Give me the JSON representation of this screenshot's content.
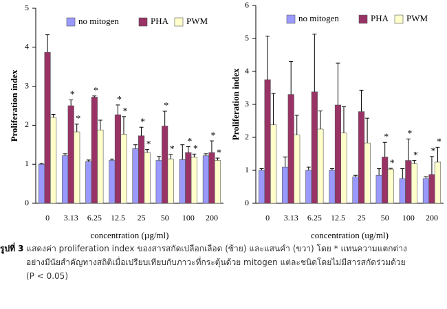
{
  "chart_data": [
    {
      "type": "bar",
      "x_label": "concentration (µg/ml)",
      "y_label": "Proliferation index",
      "categories": [
        "0",
        "3.13",
        "6.25",
        "12.5",
        "25",
        "50",
        "100",
        "200"
      ],
      "ylim": [
        0,
        5
      ],
      "yticks": [
        0,
        1,
        2,
        3,
        4,
        5
      ],
      "series": [
        {
          "name": "no mitogen",
          "color": "#9999ff",
          "values": [
            1.0,
            1.22,
            1.07,
            1.1,
            1.4,
            1.1,
            1.12,
            1.22
          ],
          "errors": [
            0.02,
            0.05,
            0.04,
            0.03,
            0.1,
            0.1,
            0.38,
            0.05
          ],
          "significance": [
            null,
            null,
            null,
            null,
            null,
            null,
            null,
            null
          ]
        },
        {
          "name": "PHA",
          "color": "#993366",
          "values": [
            3.87,
            2.5,
            2.72,
            2.27,
            1.73,
            1.98,
            1.3,
            1.3
          ],
          "errors": [
            0.45,
            0.15,
            0.03,
            0.25,
            0.22,
            0.38,
            0.15,
            0.3
          ],
          "significance": [
            null,
            "*",
            "*",
            "*",
            "*",
            "*",
            "*",
            "*"
          ]
        },
        {
          "name": "PWM",
          "color": "#ffffcc",
          "values": [
            2.2,
            1.83,
            1.88,
            1.77,
            1.3,
            1.13,
            1.18,
            1.1
          ],
          "errors": [
            0.08,
            0.2,
            0.25,
            0.45,
            0.08,
            0.12,
            0.08,
            0.06
          ],
          "significance": [
            null,
            "*",
            null,
            "*",
            "*",
            "*",
            "*",
            "*"
          ]
        }
      ]
    },
    {
      "type": "bar",
      "x_label": "concentration (ug/ml)",
      "y_label": "Proliferation index",
      "categories": [
        "0",
        "3.13",
        "6.25",
        "12.5",
        "25",
        "50",
        "100",
        "200"
      ],
      "ylim": [
        0,
        6
      ],
      "yticks": [
        0,
        1,
        2,
        3,
        4,
        5,
        6
      ],
      "series": [
        {
          "name": "no mitogen",
          "color": "#9999ff",
          "values": [
            1.0,
            1.1,
            1.0,
            1.0,
            0.8,
            0.85,
            0.75,
            0.75
          ],
          "errors": [
            0.05,
            0.3,
            0.1,
            0.05,
            0.05,
            0.2,
            0.3,
            0.05
          ],
          "significance": [
            null,
            null,
            null,
            null,
            null,
            null,
            null,
            null
          ]
        },
        {
          "name": "PHA",
          "color": "#993366",
          "values": [
            3.75,
            3.3,
            3.38,
            2.98,
            2.78,
            1.4,
            1.3,
            0.87
          ],
          "errors": [
            1.32,
            1.0,
            1.75,
            1.27,
            0.65,
            0.45,
            0.65,
            0.55
          ],
          "significance": [
            null,
            null,
            null,
            null,
            null,
            "*",
            "*",
            "*"
          ]
        },
        {
          "name": "PWM",
          "color": "#ffffcc",
          "values": [
            2.38,
            2.07,
            2.25,
            2.13,
            1.83,
            1.03,
            1.2,
            1.25
          ],
          "errors": [
            0.95,
            0.6,
            0.55,
            0.8,
            0.75,
            0.03,
            0.1,
            0.45
          ],
          "significance": [
            null,
            null,
            null,
            null,
            null,
            "*",
            "*",
            "*"
          ]
        }
      ]
    }
  ],
  "caption": {
    "label": "รูปที่ 3",
    "lines": [
      "แสดงค่า proliferation index ของสารสกัดเปลือกเลือด (ซ้าย) และแสนคำ (ขวา) โดย * แทนความแตกต่าง",
      "อย่างมีนัยสำคัญทางสถิติเมื่อเปรียบเทียบกับภาวะที่กระตุ้นด้วย mitogen แต่ละชนิดโดยไม่มีสารสกัดร่วมด้วย",
      "(P < 0.05)"
    ]
  }
}
